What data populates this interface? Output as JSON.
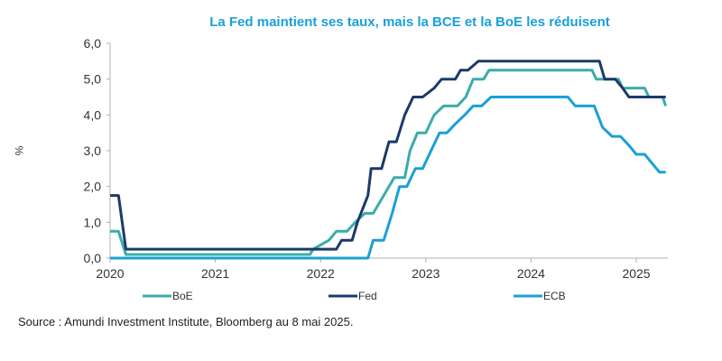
{
  "chart_data": {
    "type": "line",
    "title": "La Fed maintient ses taux, mais la BCE et la BoE les réduisent",
    "xlabel": "",
    "ylabel": "%",
    "xlim": [
      2020,
      2025.3
    ],
    "ylim": [
      0,
      6
    ],
    "x_ticks": [
      "2020",
      "2021",
      "2022",
      "2023",
      "2024",
      "2025"
    ],
    "y_ticks": [
      "0,0",
      "1,0",
      "2,0",
      "3,0",
      "4,0",
      "5,0",
      "6,0"
    ],
    "y_tick_values": [
      0,
      1,
      2,
      3,
      4,
      5,
      6
    ],
    "x_tick_values": [
      2020,
      2021,
      2022,
      2023,
      2024,
      2025
    ],
    "grid": false,
    "legend_position": "bottom",
    "series": [
      {
        "name": "BoE",
        "color": "#3aada8",
        "points": [
          [
            2020.0,
            0.75
          ],
          [
            2020.08,
            0.75
          ],
          [
            2020.15,
            0.1
          ],
          [
            2021.9,
            0.1
          ],
          [
            2021.93,
            0.25
          ],
          [
            2022.08,
            0.5
          ],
          [
            2022.15,
            0.75
          ],
          [
            2022.25,
            0.75
          ],
          [
            2022.33,
            1.0
          ],
          [
            2022.42,
            1.25
          ],
          [
            2022.5,
            1.25
          ],
          [
            2022.6,
            1.75
          ],
          [
            2022.7,
            2.25
          ],
          [
            2022.8,
            2.25
          ],
          [
            2022.85,
            3.0
          ],
          [
            2022.92,
            3.5
          ],
          [
            2023.0,
            3.5
          ],
          [
            2023.08,
            4.0
          ],
          [
            2023.17,
            4.25
          ],
          [
            2023.3,
            4.25
          ],
          [
            2023.38,
            4.5
          ],
          [
            2023.45,
            5.0
          ],
          [
            2023.55,
            5.0
          ],
          [
            2023.6,
            5.25
          ],
          [
            2024.58,
            5.25
          ],
          [
            2024.62,
            5.0
          ],
          [
            2024.83,
            5.0
          ],
          [
            2024.87,
            4.75
          ],
          [
            2025.08,
            4.75
          ],
          [
            2025.12,
            4.5
          ],
          [
            2025.25,
            4.5
          ],
          [
            2025.28,
            4.25
          ]
        ]
      },
      {
        "name": "Fed",
        "color": "#1b3a6b",
        "points": [
          [
            2020.0,
            1.75
          ],
          [
            2020.08,
            1.75
          ],
          [
            2020.15,
            0.25
          ],
          [
            2022.05,
            0.25
          ],
          [
            2022.15,
            0.25
          ],
          [
            2022.2,
            0.5
          ],
          [
            2022.3,
            0.5
          ],
          [
            2022.35,
            1.0
          ],
          [
            2022.45,
            1.75
          ],
          [
            2022.48,
            2.5
          ],
          [
            2022.58,
            2.5
          ],
          [
            2022.65,
            3.25
          ],
          [
            2022.72,
            3.25
          ],
          [
            2022.8,
            4.0
          ],
          [
            2022.88,
            4.5
          ],
          [
            2022.97,
            4.5
          ],
          [
            2023.08,
            4.75
          ],
          [
            2023.15,
            5.0
          ],
          [
            2023.28,
            5.0
          ],
          [
            2023.33,
            5.25
          ],
          [
            2023.4,
            5.25
          ],
          [
            2023.5,
            5.5
          ],
          [
            2024.65,
            5.5
          ],
          [
            2024.7,
            5.0
          ],
          [
            2024.8,
            5.0
          ],
          [
            2024.87,
            4.75
          ],
          [
            2024.93,
            4.5
          ],
          [
            2025.28,
            4.5
          ]
        ]
      },
      {
        "name": "ECB",
        "color": "#1aa0d8",
        "points": [
          [
            2020.0,
            0.0
          ],
          [
            2022.45,
            0.0
          ],
          [
            2022.5,
            0.5
          ],
          [
            2022.6,
            0.5
          ],
          [
            2022.68,
            1.25
          ],
          [
            2022.75,
            2.0
          ],
          [
            2022.82,
            2.0
          ],
          [
            2022.9,
            2.5
          ],
          [
            2022.97,
            2.5
          ],
          [
            2023.05,
            3.0
          ],
          [
            2023.13,
            3.5
          ],
          [
            2023.2,
            3.5
          ],
          [
            2023.28,
            3.75
          ],
          [
            2023.37,
            4.0
          ],
          [
            2023.45,
            4.25
          ],
          [
            2023.53,
            4.25
          ],
          [
            2023.62,
            4.5
          ],
          [
            2024.35,
            4.5
          ],
          [
            2024.42,
            4.25
          ],
          [
            2024.6,
            4.25
          ],
          [
            2024.68,
            3.65
          ],
          [
            2024.77,
            3.4
          ],
          [
            2024.85,
            3.4
          ],
          [
            2024.93,
            3.15
          ],
          [
            2025.0,
            2.9
          ],
          [
            2025.08,
            2.9
          ],
          [
            2025.15,
            2.65
          ],
          [
            2025.22,
            2.4
          ],
          [
            2025.28,
            2.4
          ]
        ]
      }
    ],
    "source": "Source : Amundi  Investment Institute, Bloomberg au 8 mai 2025."
  }
}
